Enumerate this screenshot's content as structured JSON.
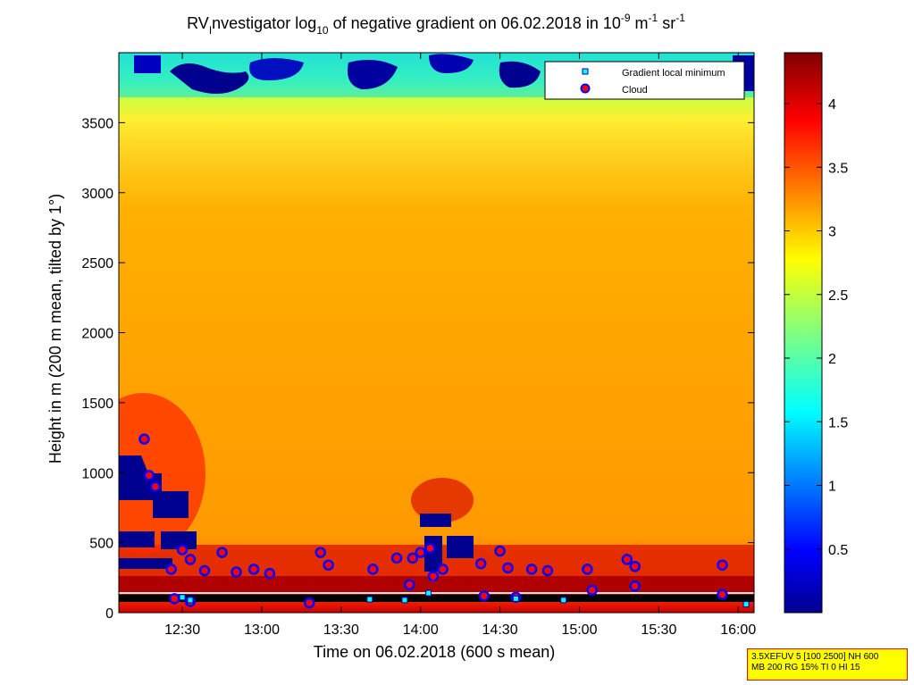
{
  "chart_data": {
    "type": "heatmap",
    "title_parts": {
      "pre": "RV",
      "sub1": "I",
      "mid1": "nvestigator log",
      "sub2": "10",
      "mid2": " of negative gradient on 06.02.2018 in 10",
      "sup1": "-9",
      "mid3": " m",
      "sup2": "-1",
      "mid4": " sr",
      "sup3": "-1"
    },
    "xlabel": "Time on 06.02.2018 (600 s mean)",
    "ylabel": "Height in m (200 m mean, tilted by 1°)",
    "x_ticks": [
      "12:30",
      "13:00",
      "13:30",
      "14:00",
      "14:30",
      "15:00",
      "15:30",
      "16:00"
    ],
    "x_tick_hours": [
      12.5,
      13.0,
      13.5,
      14.0,
      14.5,
      15.0,
      15.5,
      16.0
    ],
    "x_range": [
      12.1,
      16.1
    ],
    "y_ticks": [
      0,
      500,
      1000,
      1500,
      2000,
      2500,
      3000,
      3500
    ],
    "y_range": [
      0,
      4000
    ],
    "colorbar": {
      "range": [
        0,
        4.4
      ],
      "ticks": [
        "0.5",
        "1",
        "1.5",
        "2",
        "2.5",
        "3",
        "3.5",
        "4"
      ],
      "tick_values": [
        0.5,
        1,
        1.5,
        2,
        2.5,
        3,
        3.5,
        4
      ],
      "colormap": "jet"
    },
    "legend": [
      {
        "label": "Gradient local minimum",
        "marker": "square",
        "color": "#00ffff"
      },
      {
        "label": "Cloud",
        "marker": "circle",
        "color": "#ff0000"
      }
    ],
    "legend_position": "top-right",
    "cloud_points": [
      {
        "t": 12.26,
        "h": 1240
      },
      {
        "t": 12.29,
        "h": 980
      },
      {
        "t": 12.33,
        "h": 900
      },
      {
        "t": 12.43,
        "h": 310
      },
      {
        "t": 12.5,
        "h": 450
      },
      {
        "t": 12.55,
        "h": 380
      },
      {
        "t": 12.64,
        "h": 300
      },
      {
        "t": 12.75,
        "h": 430
      },
      {
        "t": 12.84,
        "h": 290
      },
      {
        "t": 12.95,
        "h": 310
      },
      {
        "t": 13.05,
        "h": 280
      },
      {
        "t": 13.37,
        "h": 430
      },
      {
        "t": 13.42,
        "h": 340
      },
      {
        "t": 13.7,
        "h": 310
      },
      {
        "t": 13.85,
        "h": 390
      },
      {
        "t": 13.95,
        "h": 390
      },
      {
        "t": 14.0,
        "h": 430
      },
      {
        "t": 14.06,
        "h": 460
      },
      {
        "t": 13.93,
        "h": 200
      },
      {
        "t": 14.08,
        "h": 260
      },
      {
        "t": 14.14,
        "h": 310
      },
      {
        "t": 14.38,
        "h": 350
      },
      {
        "t": 14.5,
        "h": 440
      },
      {
        "t": 14.55,
        "h": 320
      },
      {
        "t": 14.7,
        "h": 310
      },
      {
        "t": 14.8,
        "h": 300
      },
      {
        "t": 15.05,
        "h": 310
      },
      {
        "t": 15.3,
        "h": 380
      },
      {
        "t": 15.35,
        "h": 330
      },
      {
        "t": 15.08,
        "h": 160
      },
      {
        "t": 15.35,
        "h": 190
      },
      {
        "t": 15.9,
        "h": 340
      },
      {
        "t": 15.9,
        "h": 130
      },
      {
        "t": 12.45,
        "h": 100
      },
      {
        "t": 12.55,
        "h": 80
      },
      {
        "t": 13.3,
        "h": 70
      },
      {
        "t": 14.4,
        "h": 120
      },
      {
        "t": 14.6,
        "h": 110
      }
    ],
    "gradient_min_points": [
      {
        "t": 12.5,
        "h": 110
      },
      {
        "t": 12.55,
        "h": 90
      },
      {
        "t": 13.68,
        "h": 95
      },
      {
        "t": 13.9,
        "h": 90
      },
      {
        "t": 14.05,
        "h": 140
      },
      {
        "t": 14.6,
        "h": 100
      },
      {
        "t": 14.9,
        "h": 90
      },
      {
        "t": 16.05,
        "h": 60
      }
    ]
  },
  "info_box": {
    "line1": "3.5XEFUV 5 [100 2500] NH 600",
    "line2": "MB 200 RG 15% TI 0 HI 15"
  }
}
